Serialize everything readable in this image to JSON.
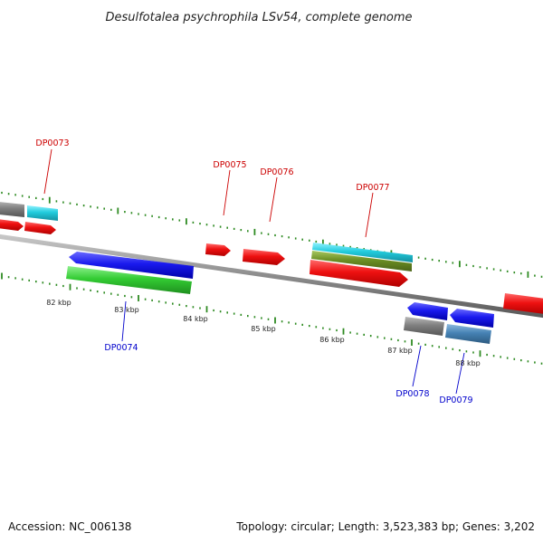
{
  "title": "Desulfotalea psychrophila LSv54, complete genome",
  "accession": "Accession: NC_006138",
  "summary": "Topology: circular; Length: 3,523,383 bp; Genes: 3,202",
  "kbp_ticks": [
    "82 kbp",
    "83 kbp",
    "84 kbp",
    "85 kbp",
    "86 kbp",
    "87 kbp",
    "88 kbp"
  ],
  "gene_labels": {
    "forward": [
      "DP0073",
      "DP0075",
      "DP0076",
      "DP0077"
    ],
    "reverse": [
      "DP0074",
      "DP0078",
      "DP0079"
    ]
  },
  "colors": {
    "forward_label": "#cc0000",
    "reverse_label": "#0000cc",
    "backbone": "#8c8c8c",
    "tick": "#2e8b22",
    "cds_red": "#ee1111",
    "cds_blue": "#1a1aee",
    "rna_green": "#33cc33",
    "cyan": "#22ccdd",
    "olive": "#6b8e23",
    "gray": "#808080",
    "steel_blue": "#4682b4"
  }
}
